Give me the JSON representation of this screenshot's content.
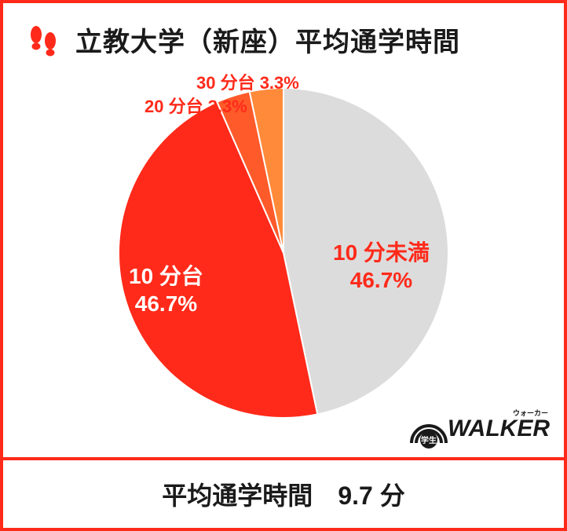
{
  "title": "立教大学（新座）平均通学時間",
  "accent_color": "#ff2a1a",
  "chart": {
    "type": "pie",
    "background_color": "#ffffff",
    "radius": 210,
    "start_angle_deg": 0,
    "slices": [
      {
        "label_line1": "10 分未満",
        "label_line2": "46.7%",
        "value": 46.7,
        "color": "#dcdcdc",
        "label_color": "#ff2a1a"
      },
      {
        "label_line1": "10 分台",
        "label_line2": "46.7%",
        "value": 46.7,
        "color": "#ff2a1a",
        "label_color": "#ffffff"
      },
      {
        "label_line1": "20 分台 3.3%",
        "label_line2": "",
        "value": 3.3,
        "color": "#ff5a2a",
        "label_color": "#ff2a1a"
      },
      {
        "label_line1": "30 分台 3.3%",
        "label_line2": "",
        "value": 3.3,
        "color": "#ff8a3a",
        "label_color": "#ff2a1a"
      }
    ]
  },
  "footer": {
    "label": "平均通学時間",
    "value": "9.7 分"
  },
  "logo": {
    "badge_text": "学生",
    "word": "WALKER",
    "ruby": "ウォーカー"
  }
}
